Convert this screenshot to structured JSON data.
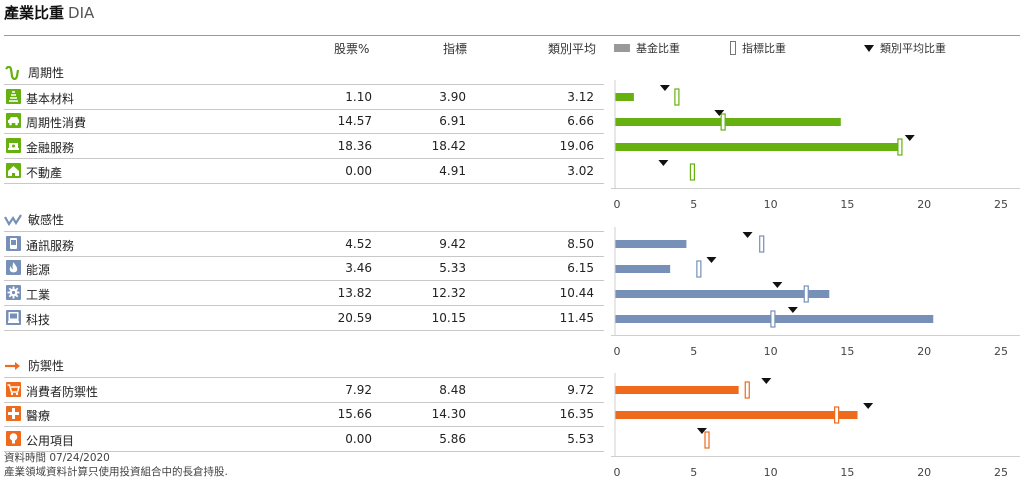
{
  "header": {
    "title": "產業比重",
    "ticker": "DIA"
  },
  "columns": {
    "stock": "股票%",
    "index": "指標",
    "category": "類別平均"
  },
  "legend": {
    "fund": "基金比重",
    "bench": "指標比重",
    "cat": "類別平均比重"
  },
  "chart_data": {
    "type": "bar",
    "xlim": [
      0,
      25
    ],
    "ticks": [
      "0",
      "5",
      "10",
      "15",
      "20",
      "25"
    ],
    "groups": [
      {
        "name": "周期性",
        "color": "#66b010",
        "icon": "cyclical-icon",
        "rows": [
          {
            "label": "基本材料",
            "icon": "materials-icon",
            "stock": "1.10",
            "index": "3.90",
            "cat": "3.12"
          },
          {
            "label": "周期性消費",
            "icon": "car-icon",
            "stock": "14.57",
            "index": "6.91",
            "cat": "6.66"
          },
          {
            "label": "金融服務",
            "icon": "finance-icon",
            "stock": "18.36",
            "index": "18.42",
            "cat": "19.06"
          },
          {
            "label": "不動產",
            "icon": "house-icon",
            "stock": "0.00",
            "index": "4.91",
            "cat": "3.02"
          }
        ]
      },
      {
        "name": "敏感性",
        "color": "#7790b8",
        "icon": "sensitive-icon",
        "rows": [
          {
            "label": "通訊服務",
            "icon": "phone-icon",
            "stock": "4.52",
            "index": "9.42",
            "cat": "8.50"
          },
          {
            "label": "能源",
            "icon": "flame-icon",
            "stock": "3.46",
            "index": "5.33",
            "cat": "6.15"
          },
          {
            "label": "工業",
            "icon": "gear-icon",
            "stock": "13.82",
            "index": "12.32",
            "cat": "10.44"
          },
          {
            "label": "科技",
            "icon": "computer-icon",
            "stock": "20.59",
            "index": "10.15",
            "cat": "11.45"
          }
        ]
      },
      {
        "name": "防禦性",
        "color": "#ee6a1c",
        "icon": "defensive-icon",
        "rows": [
          {
            "label": "消費者防禦性",
            "icon": "cart-icon",
            "stock": "7.92",
            "index": "8.48",
            "cat": "9.72"
          },
          {
            "label": "醫療",
            "icon": "medical-cross-icon",
            "stock": "15.66",
            "index": "14.30",
            "cat": "16.35"
          },
          {
            "label": "公用項目",
            "icon": "bulb-icon",
            "stock": "0.00",
            "index": "5.86",
            "cat": "5.53"
          }
        ]
      }
    ]
  },
  "footer": {
    "date": "資料時間 07/24/2020",
    "note": "產業領域資料計算只使用投資組合中的長倉持股."
  }
}
